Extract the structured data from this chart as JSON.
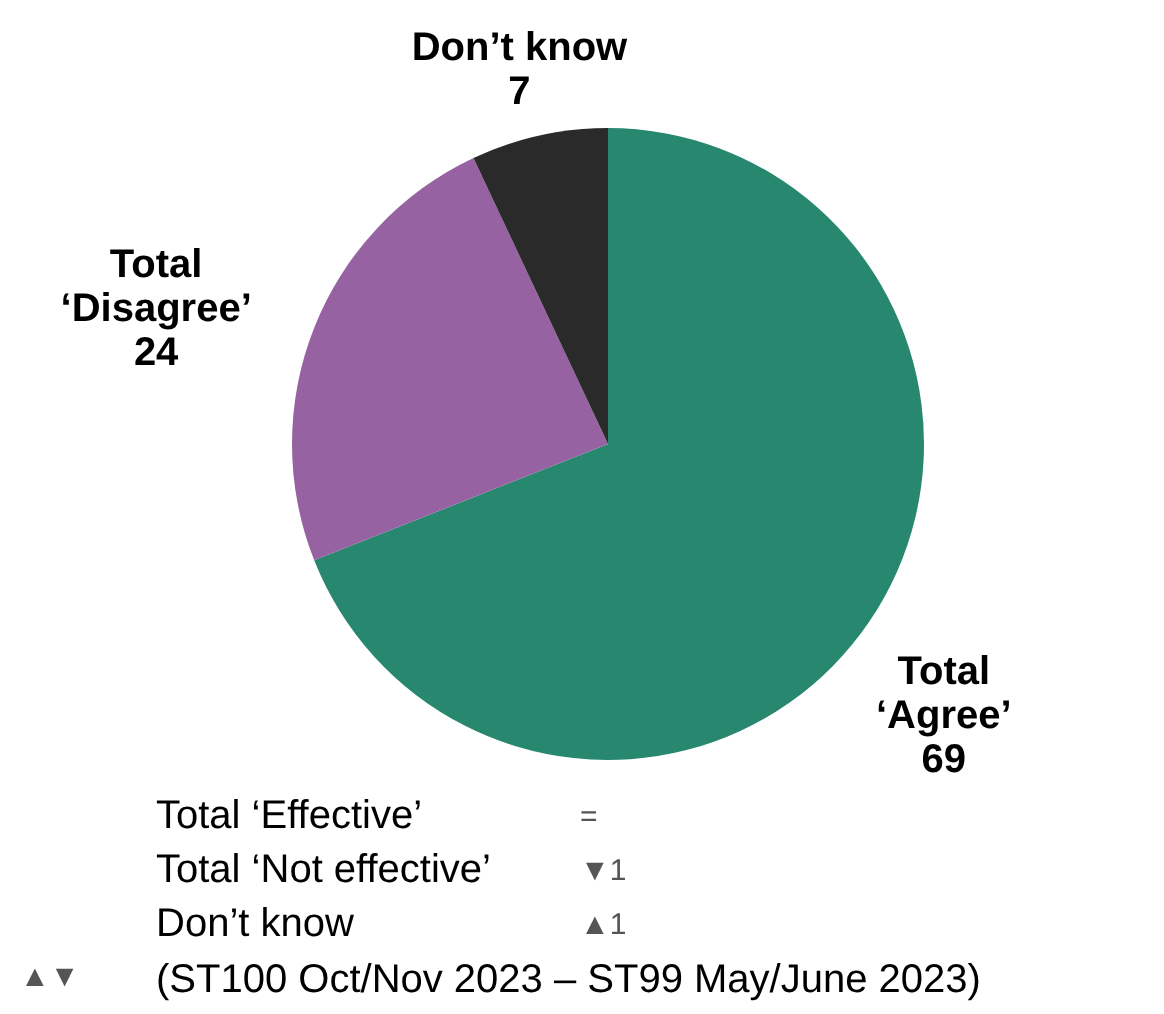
{
  "chart_data": {
    "type": "pie",
    "categories": [
      "Total\n‘Agree’",
      "Total\n‘Disagree’",
      "Don’t know"
    ],
    "values": [
      69,
      24,
      7
    ],
    "colors": [
      "#27876f",
      "#9662a2",
      "#2a2a2a"
    ],
    "data_labels": true,
    "annotations": [
      "Total ‘Effective’",
      "=",
      "Total ‘Not effective’",
      "▼1",
      "Don’t know",
      "▲1",
      "▲▼",
      "(ST100 Oct/Nov 2023 – ST99 May/June 2023)"
    ]
  }
}
